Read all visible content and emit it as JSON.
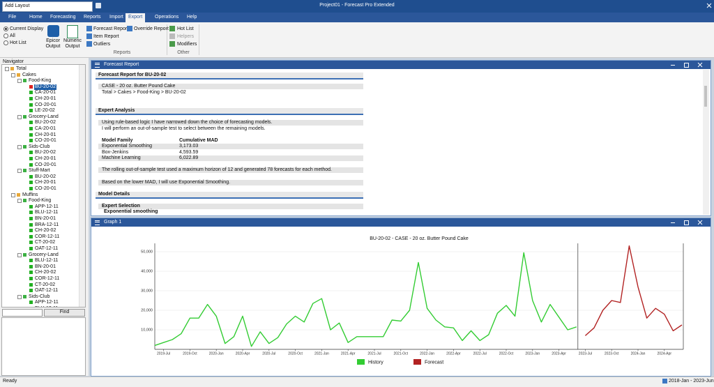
{
  "title_bar": {
    "layout": "Add Layout",
    "title": "Project01 - Forecast Pro Extended"
  },
  "tabs": [
    "File",
    "Home",
    "Forecasting",
    "Reports",
    "Import",
    "Export",
    "Operations",
    "Help"
  ],
  "ribbon": {
    "scope": [
      "Current Display",
      "All",
      "Hot List"
    ],
    "outputs": [
      "Epicor Output",
      "Numeric Output"
    ],
    "report_buttons": [
      "Forecast Report",
      "Item Report",
      "Outliers"
    ],
    "override": "Override Report",
    "reports_group": "Reports",
    "other_buttons": [
      "Hot List",
      "Helpers",
      "Modifiers"
    ],
    "other_group": "Other"
  },
  "navigator": {
    "title": "Navigator",
    "tree": {
      "label": "Total",
      "children": [
        {
          "label": "Cakes",
          "children": [
            {
              "label": "Food-King",
              "items": [
                "BU-20-02",
                "CA-20-01",
                "CH-20-01",
                "CO-20-01",
                "LE-20-02"
              ]
            },
            {
              "label": "Grocery-Land",
              "items": [
                "BU-20-02",
                "CA-20-01",
                "CH-20-01",
                "CO-20-01"
              ]
            },
            {
              "label": "Sids-Club",
              "items": [
                "BU-20-02",
                "CH-20-01",
                "CO-20-01"
              ]
            },
            {
              "label": "Stuff-Mart",
              "items": [
                "BU-20-02",
                "CH-20-01",
                "CO-20-01"
              ]
            }
          ]
        },
        {
          "label": "Muffins",
          "children": [
            {
              "label": "Food-King",
              "items": [
                "APP-12-11",
                "BLU-12-11",
                "BN-20-01",
                "BRA-12-11",
                "CH-20-02",
                "COR-12-11",
                "CT-20-02",
                "OAT-12-11"
              ]
            },
            {
              "label": "Grocery-Land",
              "items": [
                "BLU-12-11",
                "BN-20-01",
                "CH-20-02",
                "COR-12-11",
                "CT-20-02",
                "OAT-12-11"
              ]
            },
            {
              "label": "Sids-Club",
              "items": [
                "APP-12-11",
                "BLU-12-11"
              ]
            }
          ]
        }
      ]
    },
    "find": "Find"
  },
  "report": {
    "window_title": "Forecast Report",
    "heading": "Forecast Report for BU-20-02",
    "item": "CASE - 20 oz. Butter Pound Cake",
    "path": "Total > Cakes > Food-King > BU-20-02",
    "expert_analysis": "Expert Analysis",
    "analysis_lines": [
      "Using rule-based logic I have narrowed down the choice of forecasting models.",
      "I will perform an out-of-sample test to select between the remaining models."
    ],
    "table": {
      "header": [
        "Model Family",
        "Cumulative MAD"
      ],
      "rows": [
        [
          "Exponential Smoothing",
          "3,173.03"
        ],
        [
          "Box-Jenkins",
          "4,593.59"
        ],
        [
          "Machine Learning",
          "6,022.89"
        ]
      ]
    },
    "test_note": "The rolling out-of-sample test used a maximum horizon of 12 and generated 78 forecasts for each method.",
    "decision": "Based on the lower MAD, I will use Exponential Smoothing.",
    "model_details": "Model Details",
    "expert_selection": "Expert Selection",
    "selection": "Exponential smoothing"
  },
  "graph": {
    "window_title": "Graph 1"
  },
  "chart_data": {
    "type": "line",
    "title": "BU-20-02 - CASE - 20 oz. Butter Pound Cake",
    "categories": [
      null,
      "2019-Jul",
      null,
      null,
      "2019-Oct",
      null,
      null,
      "2020-Jan",
      null,
      null,
      "2020-Apr",
      null,
      null,
      "2020-Jul",
      null,
      null,
      "2020-Oct",
      null,
      null,
      "2021-Jan",
      null,
      null,
      "2021-Apr",
      null,
      null,
      "2021-Jul",
      null,
      null,
      "2021-Oct",
      null,
      null,
      "2022-Jan",
      null,
      null,
      "2022-Apr",
      null,
      null,
      "2022-Jul",
      null,
      null,
      "2022-Oct",
      null,
      null,
      "2023-Jan",
      null,
      null,
      "2023-Apr",
      null,
      null,
      "2023-Jul",
      null,
      null,
      "2023-Oct",
      null,
      null,
      "2024-Jan",
      null,
      null,
      "2024-Apr",
      null,
      null
    ],
    "series": [
      {
        "name": "History",
        "color": "#33cc33",
        "values": [
          2000,
          3500,
          5000,
          8000,
          16000,
          16000,
          23000,
          17000,
          3000,
          6500,
          17000,
          1500,
          9000,
          3000,
          6000,
          13000,
          17000,
          14000,
          23500,
          26000,
          10000,
          13500,
          3500,
          6500,
          6500,
          6500,
          6500,
          15000,
          14500,
          20000,
          44500,
          21000,
          15000,
          11500,
          11000,
          4500,
          9500,
          4500,
          7500,
          18500,
          22500,
          17000,
          49500,
          25000,
          14000,
          23000,
          16500,
          10000,
          11500,
          null,
          null,
          null,
          null,
          null,
          null,
          null,
          null,
          null,
          null,
          null,
          null
        ]
      },
      {
        "name": "Forecast",
        "color": "#b22222",
        "values": [
          null,
          null,
          null,
          null,
          null,
          null,
          null,
          null,
          null,
          null,
          null,
          null,
          null,
          null,
          null,
          null,
          null,
          null,
          null,
          null,
          null,
          null,
          null,
          null,
          null,
          null,
          null,
          null,
          null,
          null,
          null,
          null,
          null,
          null,
          null,
          null,
          null,
          null,
          null,
          null,
          null,
          null,
          null,
          null,
          null,
          null,
          null,
          null,
          null,
          7000,
          11000,
          20000,
          25000,
          24000,
          53000,
          32000,
          16000,
          21000,
          18000,
          9500,
          12500
        ]
      }
    ],
    "ylim": [
      0,
      55000
    ],
    "yticks": [
      {
        "value": 10000,
        "label": "10,000"
      },
      {
        "value": 20000,
        "label": "20,000"
      },
      {
        "value": 30000,
        "label": "30,000"
      },
      {
        "value": 40000,
        "label": "40,000"
      },
      {
        "value": 50000,
        "label": "50,000"
      }
    ],
    "grid": true,
    "legend": "bottom"
  },
  "status": {
    "left": "Ready",
    "right": "2018-Jan - 2023-Jun"
  }
}
